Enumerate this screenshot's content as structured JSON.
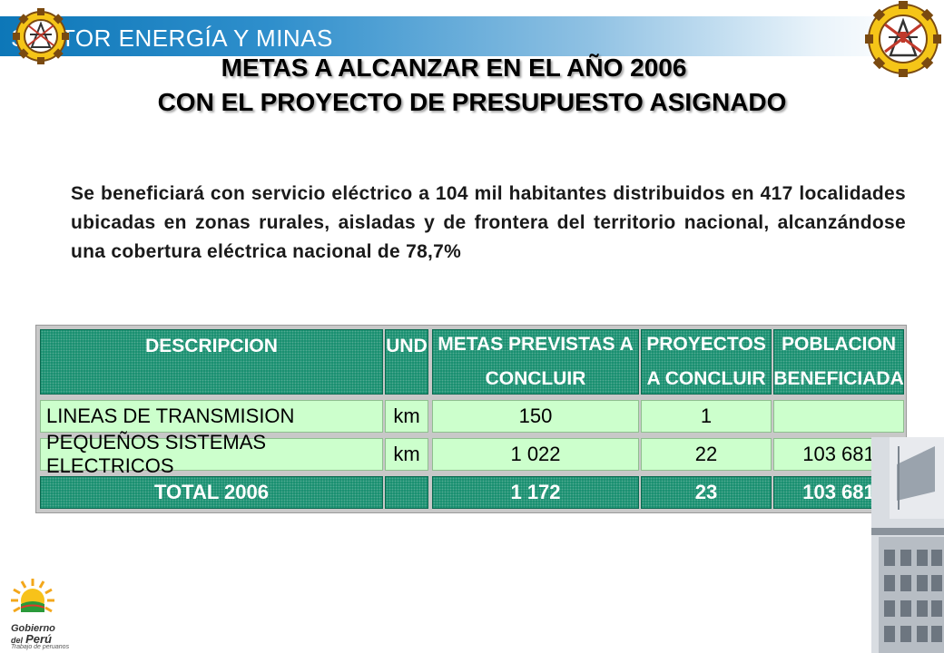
{
  "header": {
    "sector_title": "SECTOR ENERGÍA Y MINAS"
  },
  "titles": {
    "line1": "METAS A ALCANZAR EN EL AÑO 2006",
    "line2": "CON EL PROYECTO DE PRESUPUESTO ASIGNADO"
  },
  "paragraph": "Se beneficiará con servicio eléctrico a 104 mil habitantes distribuidos en 417 localidades ubicadas en zonas rurales, aisladas y de frontera del territorio nacional, alcanzándose una cobertura eléctrica nacional de 78,7%",
  "table": {
    "headers": {
      "descripcion": "DESCRIPCION",
      "und": "UND",
      "metas_line1": "METAS PREVISTAS A",
      "metas_line2": "CONCLUIR",
      "proyectos_line1": "PROYECTOS",
      "proyectos_line2": "A CONCLUIR",
      "poblacion_line1": "POBLACION",
      "poblacion_line2": "BENEFICIADA"
    },
    "rows": [
      {
        "descripcion": "LINEAS DE TRANSMISION",
        "und": "km",
        "metas": "150",
        "proyectos": "1",
        "poblacion": ""
      },
      {
        "descripcion": "PEQUEÑOS SISTEMAS ELECTRICOS",
        "und": "km",
        "metas": "1 022",
        "proyectos": "22",
        "poblacion": "103 681"
      }
    ],
    "total": {
      "descripcion": "TOTAL 2006",
      "und": "",
      "metas": "1 172",
      "proyectos": "23",
      "poblacion": "103 681"
    }
  },
  "footer_logo": {
    "name_line1": "Gobierno",
    "name_line2": "del",
    "name_line3": "Perú",
    "tagline": "Trabajo de peruanos"
  },
  "colors": {
    "header_blue": "#0d77b8",
    "table_header_green": "#0f8a6a",
    "table_body_green": "#ccffcc"
  },
  "icons": [
    "gear-emblem-icon",
    "mining-emblem-icon",
    "gobierno-peru-sun-icon"
  ]
}
